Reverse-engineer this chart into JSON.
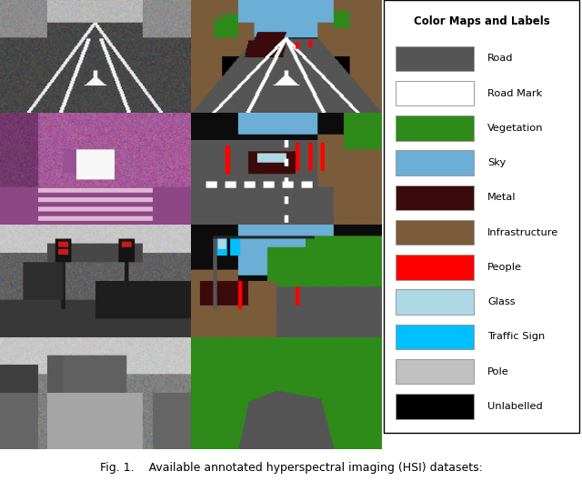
{
  "legend_title": "Color Maps and Labels",
  "legend_items": [
    {
      "label": "Road",
      "color": "#555555"
    },
    {
      "label": "Road Mark",
      "color": "#ffffff"
    },
    {
      "label": "Vegetation",
      "color": "#2e8b1a"
    },
    {
      "label": "Sky",
      "color": "#6baed6"
    },
    {
      "label": "Metal",
      "color": "#3b0a0a"
    },
    {
      "label": "Infrastructure",
      "color": "#7a5c3a"
    },
    {
      "label": "People",
      "color": "#ff0000"
    },
    {
      "label": "Glass",
      "color": "#add8e6"
    },
    {
      "label": "Traffic Sign",
      "color": "#00bfff"
    },
    {
      "label": "Pole",
      "color": "#c0c0c0"
    },
    {
      "label": "Unlabelled",
      "color": "#000000"
    }
  ],
  "caption": "Fig. 1.    Available annotated hyperspectral imaging (HSI) datasets:",
  "fig_width": 6.4,
  "fig_height": 5.4,
  "dpi": 100,
  "colors": {
    "road": "#555555",
    "road_mark": "#ffffff",
    "vegetation": "#2e8b1a",
    "sky": "#6baed6",
    "metal": "#3b0a0a",
    "infrastructure": "#7a5c3a",
    "people": "#ff0000",
    "glass": "#add8e6",
    "traffic_sign": "#00bfff",
    "pole": "#c0c0c0",
    "unlabelled": "#000000"
  }
}
